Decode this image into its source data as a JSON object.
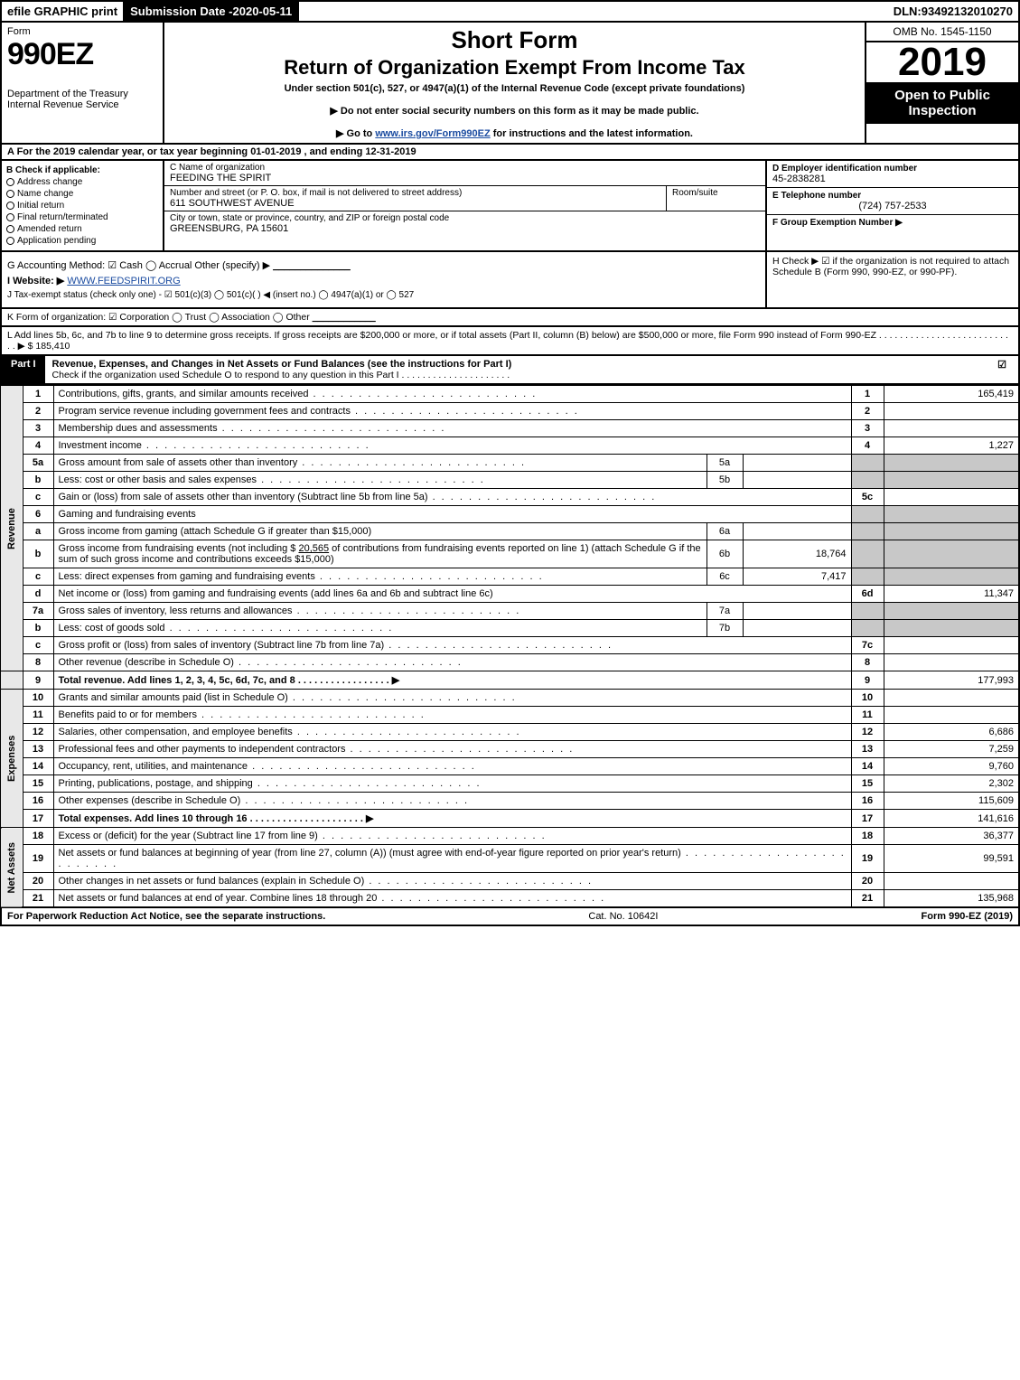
{
  "top": {
    "efile": "efile GRAPHIC print",
    "sub_date_label": "Submission Date - ",
    "sub_date": "2020-05-11",
    "dln_label": "DLN: ",
    "dln": "93492132010270"
  },
  "header": {
    "form_label": "Form",
    "form_code": "990EZ",
    "dept": "Department of the Treasury",
    "irs": "Internal Revenue Service",
    "short": "Short Form",
    "title": "Return of Organization Exempt From Income Tax",
    "under": "Under section 501(c), 527, or 4947(a)(1) of the Internal Revenue Code (except private foundations)",
    "note1": "▶ Do not enter social security numbers on this form as it may be made public.",
    "note2_pre": "▶ Go to ",
    "note2_link": "www.irs.gov/Form990EZ",
    "note2_post": " for instructions and the latest information.",
    "omb": "OMB No. 1545-1150",
    "year": "2019",
    "open": "Open to Public Inspection"
  },
  "period": "A  For the 2019 calendar year, or tax year beginning 01-01-2019 , and ending 12-31-2019",
  "box_b": {
    "label": "B  Check if applicable:",
    "opts": [
      "Address change",
      "Name change",
      "Initial return",
      "Final return/terminated",
      "Amended return",
      "Application pending"
    ]
  },
  "box_c": {
    "label": "C Name of organization",
    "name": "FEEDING THE SPIRIT",
    "street_label": "Number and street (or P. O. box, if mail is not delivered to street address)",
    "street": "611 SOUTHWEST AVENUE",
    "room_label": "Room/suite",
    "city_label": "City or town, state or province, country, and ZIP or foreign postal code",
    "city": "GREENSBURG, PA  15601"
  },
  "box_d": {
    "label": "D Employer identification number",
    "value": "45-2838281"
  },
  "box_e": {
    "label": "E Telephone number",
    "value": "(724) 757-2533"
  },
  "box_f": {
    "label": "F Group Exemption Number  ▶"
  },
  "meta": {
    "g": "G Accounting Method:  ☑ Cash  ◯ Accrual   Other (specify) ▶ ",
    "g_blank": "______________",
    "website_label": "I Website: ▶",
    "website": "WWW.FEEDSPIRIT.ORG",
    "j": "J Tax-exempt status (check only one) -  ☑ 501(c)(3)  ◯ 501(c)(  ) ◀ (insert no.)  ◯ 4947(a)(1) or  ◯ 527",
    "k": "K Form of organization:   ☑ Corporation   ◯ Trust   ◯ Association   ◯ Other  ",
    "k_blank": "____________",
    "h": "H  Check ▶ ☑ if the organization is not required to attach Schedule B (Form 990, 990-EZ, or 990-PF)."
  },
  "line_l": {
    "text": "L Add lines 5b, 6c, and 7b to line 9 to determine gross receipts. If gross receipts are $200,000 or more, or if total assets (Part II, column (B) below) are $500,000 or more, file Form 990 instead of Form 990-EZ  .  .  .  .  .  .  .  .  .  .  .  .  .  .  .  .  .  .  .  .  .  .  .  .  .  .  .  ▶ $ ",
    "amount": "185,410"
  },
  "part1": {
    "tab": "Part I",
    "title": "Revenue, Expenses, and Changes in Net Assets or Fund Balances (see the instructions for Part I)",
    "check_note": "Check if the organization used Schedule O to respond to any question in this Part I . . . . . . . . . . . . . . . . . . . . .",
    "checked": "☑"
  },
  "side_labels": {
    "rev": "Revenue",
    "exp": "Expenses",
    "net": "Net Assets"
  },
  "rows": {
    "r1": {
      "n": "1",
      "d": "Contributions, gifts, grants, and similar amounts received",
      "rn": "1",
      "amt": "165,419"
    },
    "r2": {
      "n": "2",
      "d": "Program service revenue including government fees and contracts",
      "rn": "2",
      "amt": ""
    },
    "r3": {
      "n": "3",
      "d": "Membership dues and assessments",
      "rn": "3",
      "amt": ""
    },
    "r4": {
      "n": "4",
      "d": "Investment income",
      "rn": "4",
      "amt": "1,227"
    },
    "r5a": {
      "n": "5a",
      "d": "Gross amount from sale of assets other than inventory",
      "sn": "5a",
      "sv": ""
    },
    "r5b": {
      "n": "b",
      "d": "Less: cost or other basis and sales expenses",
      "sn": "5b",
      "sv": ""
    },
    "r5c": {
      "n": "c",
      "d": "Gain or (loss) from sale of assets other than inventory (Subtract line 5b from line 5a)",
      "rn": "5c",
      "amt": ""
    },
    "r6": {
      "n": "6",
      "d": "Gaming and fundraising events"
    },
    "r6a": {
      "n": "a",
      "d": "Gross income from gaming (attach Schedule G if greater than $15,000)",
      "sn": "6a",
      "sv": ""
    },
    "r6b": {
      "n": "b",
      "d_pre": "Gross income from fundraising events (not including $ ",
      "d_amt": "20,565",
      "d_mid": " of contributions from fundraising events reported on line 1) (attach Schedule G if the sum of such gross income and contributions exceeds $15,000)",
      "sn": "6b",
      "sv": "18,764"
    },
    "r6c": {
      "n": "c",
      "d": "Less: direct expenses from gaming and fundraising events",
      "sn": "6c",
      "sv": "7,417"
    },
    "r6d": {
      "n": "d",
      "d": "Net income or (loss) from gaming and fundraising events (add lines 6a and 6b and subtract line 6c)",
      "rn": "6d",
      "amt": "11,347"
    },
    "r7a": {
      "n": "7a",
      "d": "Gross sales of inventory, less returns and allowances",
      "sn": "7a",
      "sv": ""
    },
    "r7b": {
      "n": "b",
      "d": "Less: cost of goods sold",
      "sn": "7b",
      "sv": ""
    },
    "r7c": {
      "n": "c",
      "d": "Gross profit or (loss) from sales of inventory (Subtract line 7b from line 7a)",
      "rn": "7c",
      "amt": ""
    },
    "r8": {
      "n": "8",
      "d": "Other revenue (describe in Schedule O)",
      "rn": "8",
      "amt": ""
    },
    "r9": {
      "n": "9",
      "d": "Total revenue. Add lines 1, 2, 3, 4, 5c, 6d, 7c, and 8   .  .  .  .  .  .  .  .  .  .  .  .  .  .  .  .  .  ▶",
      "rn": "9",
      "amt": "177,993"
    },
    "r10": {
      "n": "10",
      "d": "Grants and similar amounts paid (list in Schedule O)",
      "rn": "10",
      "amt": ""
    },
    "r11": {
      "n": "11",
      "d": "Benefits paid to or for members",
      "rn": "11",
      "amt": ""
    },
    "r12": {
      "n": "12",
      "d": "Salaries, other compensation, and employee benefits",
      "rn": "12",
      "amt": "6,686"
    },
    "r13": {
      "n": "13",
      "d": "Professional fees and other payments to independent contractors",
      "rn": "13",
      "amt": "7,259"
    },
    "r14": {
      "n": "14",
      "d": "Occupancy, rent, utilities, and maintenance",
      "rn": "14",
      "amt": "9,760"
    },
    "r15": {
      "n": "15",
      "d": "Printing, publications, postage, and shipping",
      "rn": "15",
      "amt": "2,302"
    },
    "r16": {
      "n": "16",
      "d": "Other expenses (describe in Schedule O)",
      "rn": "16",
      "amt": "115,609"
    },
    "r17": {
      "n": "17",
      "d": "Total expenses. Add lines 10 through 16   .  .  .  .  .  .  .  .  .  .  .  .  .  .  .  .  .  .  .  .  .  ▶",
      "rn": "17",
      "amt": "141,616"
    },
    "r18": {
      "n": "18",
      "d": "Excess or (deficit) for the year (Subtract line 17 from line 9)",
      "rn": "18",
      "amt": "36,377"
    },
    "r19": {
      "n": "19",
      "d": "Net assets or fund balances at beginning of year (from line 27, column (A)) (must agree with end-of-year figure reported on prior year's return)",
      "rn": "19",
      "amt": "99,591"
    },
    "r20": {
      "n": "20",
      "d": "Other changes in net assets or fund balances (explain in Schedule O)",
      "rn": "20",
      "amt": ""
    },
    "r21": {
      "n": "21",
      "d": "Net assets or fund balances at end of year. Combine lines 18 through 20",
      "rn": "21",
      "amt": "135,968"
    }
  },
  "footer": {
    "left": "For Paperwork Reduction Act Notice, see the separate instructions.",
    "mid": "Cat. No. 10642I",
    "right": "Form 990-EZ (2019)"
  }
}
